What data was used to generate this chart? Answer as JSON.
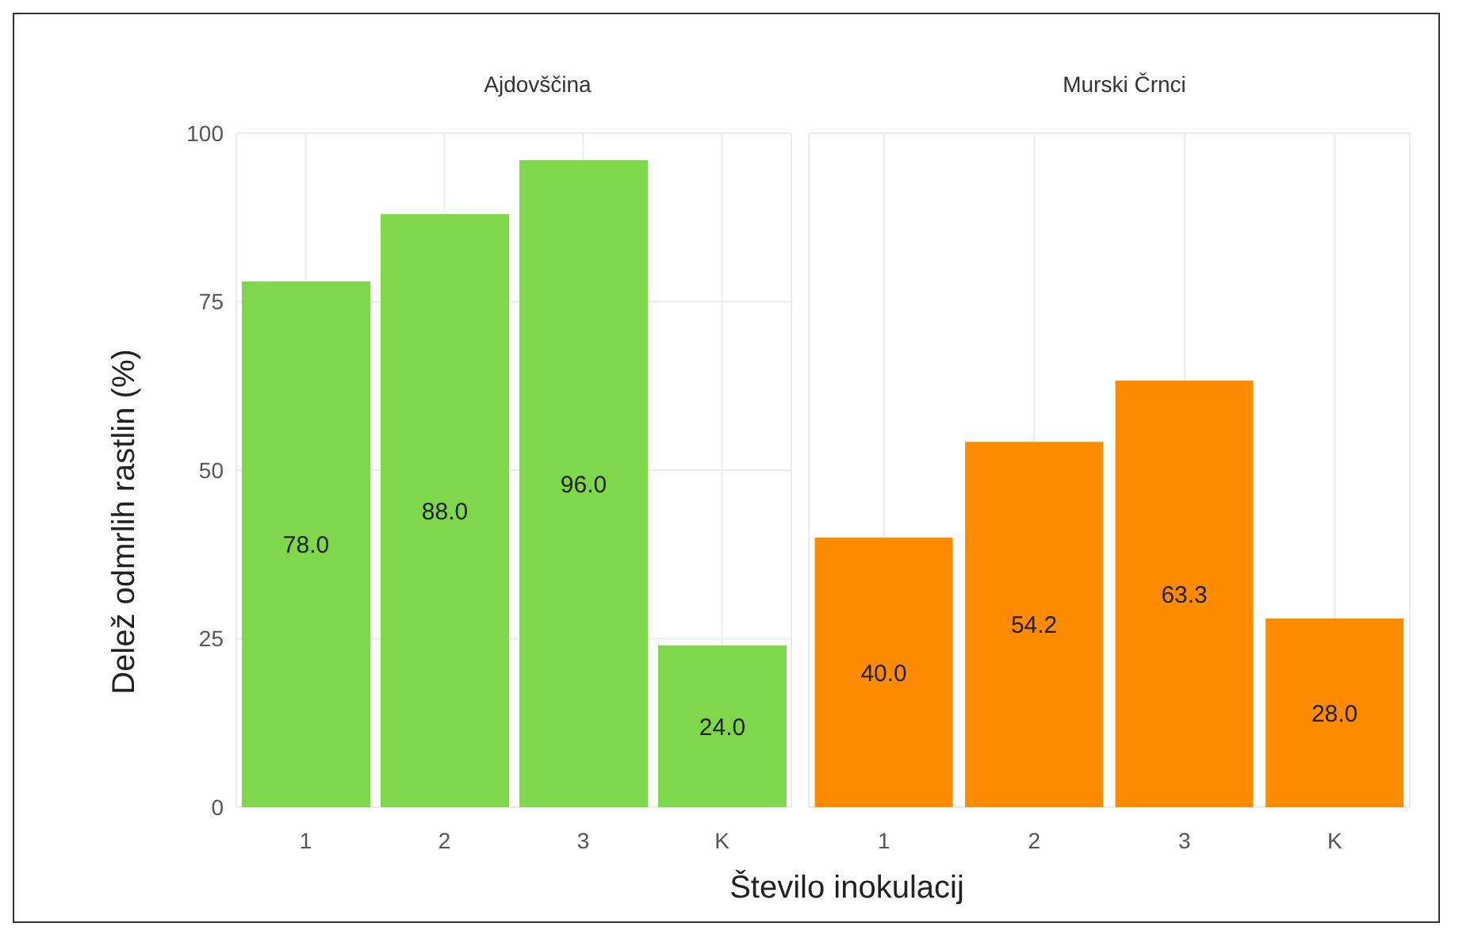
{
  "chart_data": [
    {
      "type": "bar",
      "title": "Ajdovščina",
      "ylabel": "Delež odmrlih rastlin (%)",
      "xlabel": "Število inokulacij",
      "categories": [
        "1",
        "2",
        "3",
        "K"
      ],
      "series": [
        {
          "color": "#7fd84b",
          "values": [
            78.0,
            88.0,
            96.0,
            24.0
          ],
          "value_labels": [
            "78.0",
            "88.0",
            "96.0",
            "24.0"
          ]
        }
      ],
      "ylim": [
        0,
        100
      ],
      "yticks": [
        0,
        25,
        50,
        75,
        100
      ],
      "grid": true
    },
    {
      "type": "bar",
      "title": "Murski Črnci",
      "categories": [
        "1",
        "2",
        "3",
        "K"
      ],
      "series": [
        {
          "color": "#ff8c00",
          "values": [
            40.0,
            54.2,
            63.3,
            28.0
          ],
          "value_labels": [
            "40.0",
            "54.2",
            "63.3",
            "28.0"
          ]
        }
      ],
      "ylim": [
        0,
        100
      ],
      "yticks": [
        0,
        25,
        50,
        75,
        100
      ],
      "grid": true,
      "tick_labels": "x"
    }
  ]
}
